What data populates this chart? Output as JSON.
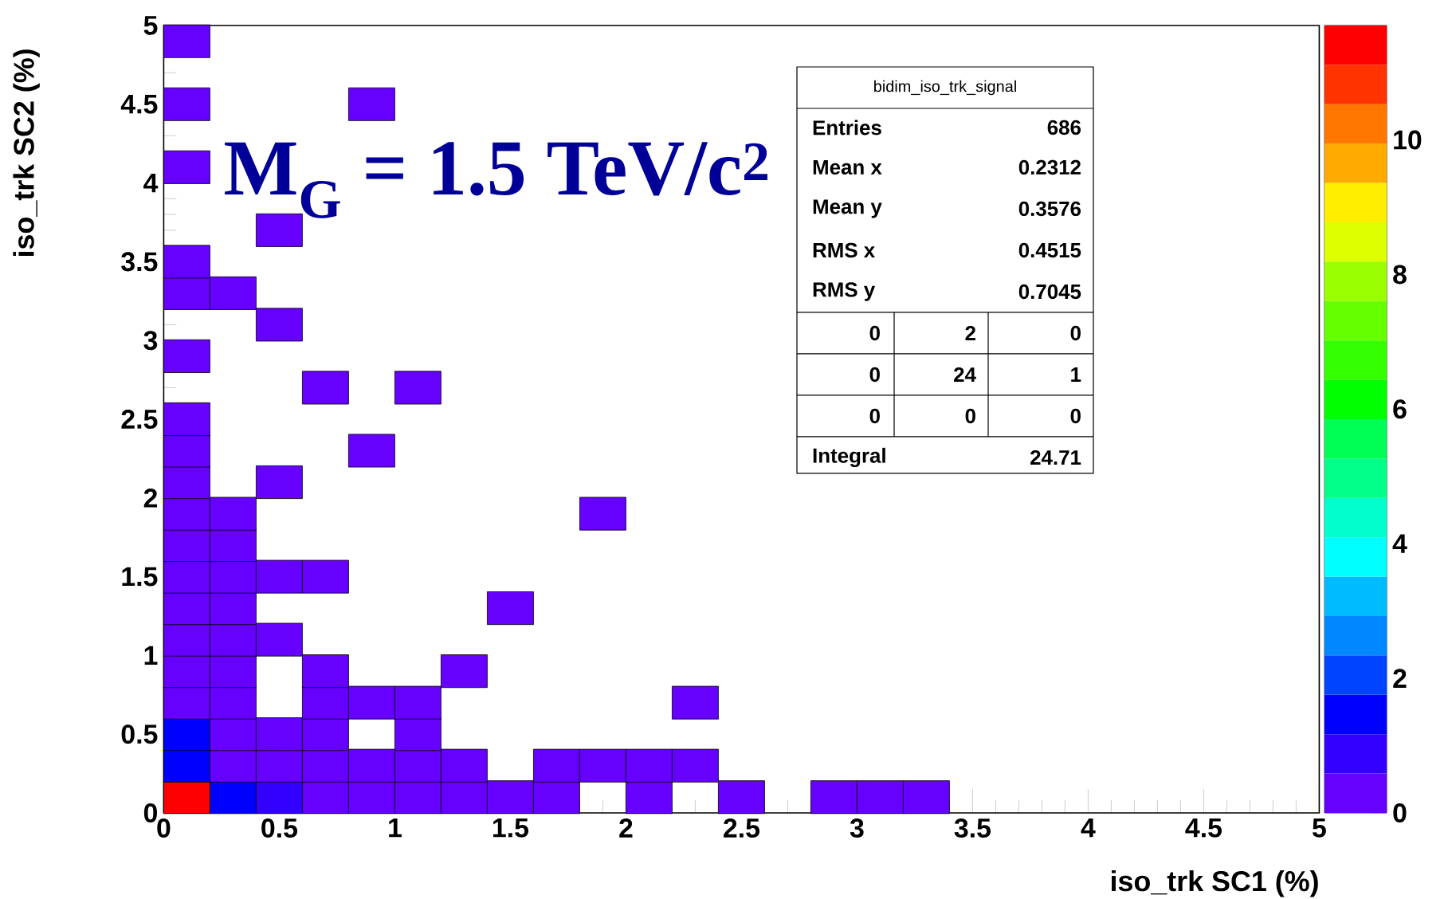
{
  "chart_data": {
    "type": "scatter",
    "xlabel": "iso_trk SC1 (%)",
    "ylabel": "iso_trk SC2 (%)",
    "annotations": [
      "M$_{G}$ = 1.5 TeV/c$^{2}$",
      "bidim_iso_trk_signal",
      "Entries",
      "686",
      "Mean x",
      "0.2312",
      "Mean y",
      "0.3576",
      "RMS x",
      "0.4515",
      "RMS y",
      "0.7045",
      "0",
      "2",
      "0",
      "0",
      "24",
      "1",
      "0",
      "0",
      "0",
      "Integral",
      "24.71"
    ],
    "marker": "square",
    "x": [
      0.1,
      0.3,
      0.5,
      0.7,
      0.9,
      1.1,
      1.3,
      1.5,
      1.7,
      2.1,
      2.5,
      2.9,
      3.1,
      3.3,
      0.1,
      0.3,
      0.5,
      0.7,
      0.9,
      1.1,
      1.3,
      1.7,
      1.9,
      2.1,
      2.3,
      0.1,
      0.3,
      0.5,
      0.7,
      1.1,
      0.1,
      0.3,
      0.7,
      0.9,
      1.1,
      2.3,
      0.1,
      0.3,
      0.7,
      1.3,
      0.1,
      0.3,
      0.5,
      0.1,
      0.3,
      1.5,
      0.1,
      0.3,
      0.5,
      0.7,
      0.1,
      0.3,
      0.1,
      0.3,
      1.9,
      0.1,
      0.5,
      0.1,
      0.9,
      0.1,
      0.7,
      1.1,
      0.1,
      0.5,
      0.1,
      0.3,
      0.1,
      0.5,
      0.1,
      0.1,
      0.9,
      0.1
    ],
    "values": [
      0.1,
      0.1,
      0.1,
      0.1,
      0.1,
      0.1,
      0.1,
      0.1,
      0.1,
      0.1,
      0.1,
      0.1,
      0.1,
      0.1,
      0.3,
      0.3,
      0.3,
      0.3,
      0.3,
      0.3,
      0.3,
      0.3,
      0.3,
      0.3,
      0.3,
      0.5,
      0.5,
      0.5,
      0.5,
      0.5,
      0.7,
      0.7,
      0.7,
      0.7,
      0.7,
      0.7,
      0.9,
      0.9,
      0.9,
      0.9,
      1.1,
      1.1,
      1.1,
      1.3,
      1.3,
      1.3,
      1.5,
      1.5,
      1.5,
      1.5,
      1.7,
      1.7,
      1.9,
      1.9,
      1.9,
      2.1,
      2.1,
      2.3,
      2.3,
      2.5,
      2.7,
      2.7,
      2.9,
      3.1,
      3.3,
      3.3,
      3.5,
      3.7,
      4.1,
      4.5,
      4.5,
      4.9
    ],
    "cvalues": [
      11.5,
      1.5,
      0.9,
      0.1,
      0.1,
      0.1,
      0.1,
      0.1,
      0.1,
      0.1,
      0.1,
      0.1,
      0.1,
      0.1,
      1.5,
      0.1,
      0.1,
      0.1,
      0.1,
      0.1,
      0.1,
      0.1,
      0.1,
      0.1,
      0.1,
      1.5,
      0.1,
      0.1,
      0.1,
      0.1,
      0.1,
      0.1,
      0.1,
      0.1,
      0.1,
      0.1,
      0.1,
      0.1,
      0.1,
      0.1,
      0.1,
      0.1,
      0.1,
      0.1,
      0.1,
      0.1,
      0.1,
      0.1,
      0.1,
      0.1,
      0.1,
      0.1,
      0.1,
      0.1,
      0.1,
      0.1,
      0.1,
      0.1,
      0.1,
      0.1,
      0.1,
      0.1,
      0.1,
      0.1,
      0.1,
      0.1,
      0.1,
      0.1,
      0.1,
      0.1,
      0.1,
      0.1
    ],
    "xlim": [
      0,
      5
    ],
    "ylim": [
      0,
      5
    ],
    "xticks": [
      0,
      0.5,
      1,
      1.5,
      2,
      2.5,
      3,
      3.5,
      4,
      4.5,
      5
    ],
    "yticks": [
      0,
      0.5,
      1,
      1.5,
      2,
      2.5,
      3,
      3.5,
      4,
      4.5,
      5
    ],
    "clim": [
      0,
      11.7
    ],
    "cticks": [
      0,
      2,
      4,
      6,
      8,
      10
    ]
  }
}
